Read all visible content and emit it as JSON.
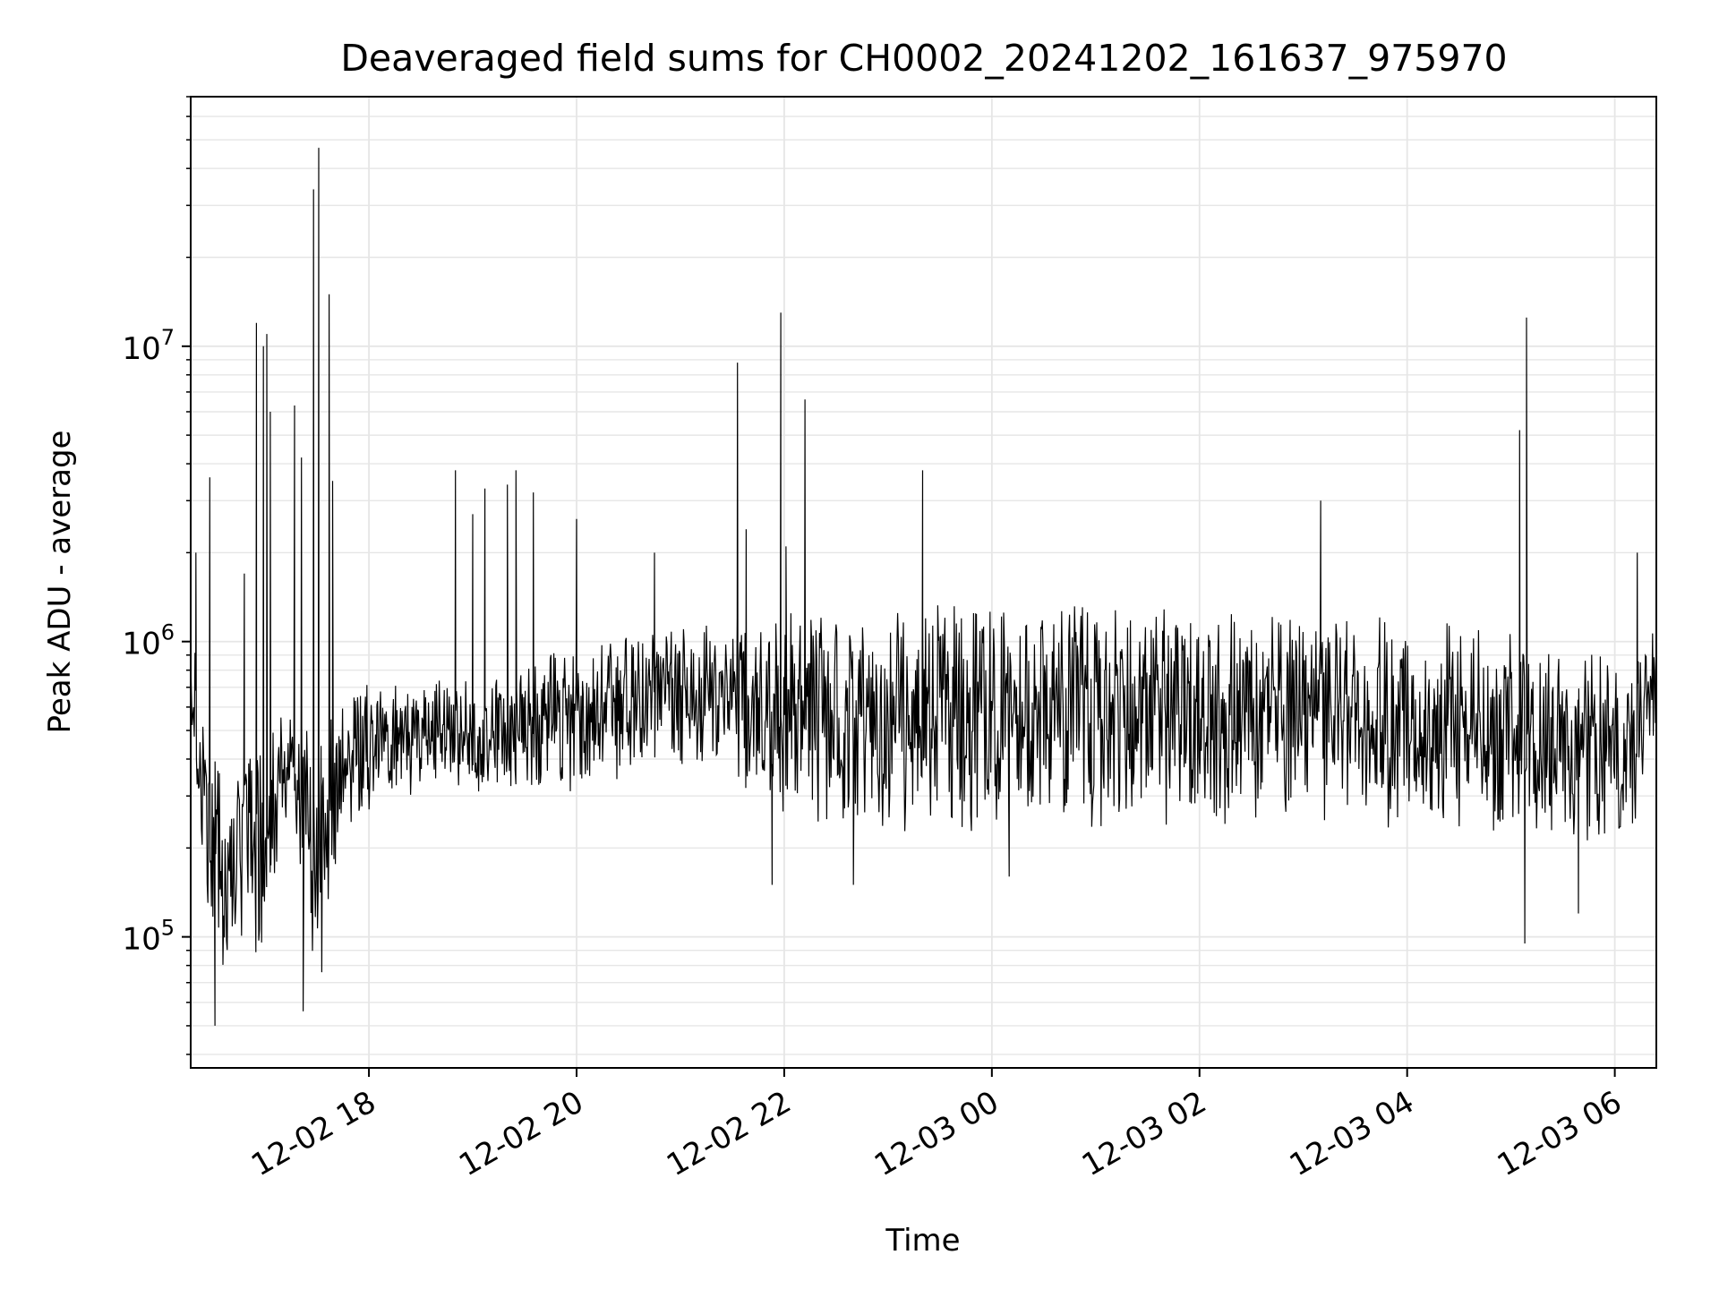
{
  "chart_data": {
    "type": "line",
    "title": "Deaveraged field sums for CH0002_20241202_161637_975970",
    "xlabel": "Time",
    "ylabel": "Peak ADU - average",
    "yscale": "log",
    "ylim": [
      36000,
      70000000
    ],
    "xlim": [
      "2024-12-02 16:17",
      "2024-12-03 06:24"
    ],
    "grid": true,
    "line_color": "#000000",
    "grid_color": "#e6e6e6",
    "x_ticks": [
      {
        "label": "12-02 18",
        "value": "2024-12-02 18:00"
      },
      {
        "label": "12-02 20",
        "value": "2024-12-02 20:00"
      },
      {
        "label": "12-02 22",
        "value": "2024-12-02 22:00"
      },
      {
        "label": "12-03 00",
        "value": "2024-12-03 00:00"
      },
      {
        "label": "12-03 02",
        "value": "2024-12-03 02:00"
      },
      {
        "label": "12-03 04",
        "value": "2024-12-03 04:00"
      },
      {
        "label": "12-03 06",
        "value": "2024-12-03 06:00"
      }
    ],
    "y_ticks": [
      {
        "base": "10",
        "exp": "5",
        "value": 100000
      },
      {
        "base": "10",
        "exp": "6",
        "value": 1000000
      },
      {
        "base": "10",
        "exp": "7",
        "value": 10000000
      }
    ],
    "envelope": {
      "x": [
        "2024-12-02 16:17",
        "2024-12-02 16:25",
        "2024-12-02 16:35",
        "2024-12-02 16:45",
        "2024-12-02 17:00",
        "2024-12-02 17:15",
        "2024-12-02 17:25",
        "2024-12-02 17:35",
        "2024-12-02 17:50",
        "2024-12-02 18:10",
        "2024-12-02 18:40",
        "2024-12-02 19:20",
        "2024-12-02 20:00",
        "2024-12-02 20:40",
        "2024-12-02 21:20",
        "2024-12-02 22:00",
        "2024-12-02 23:00",
        "2024-12-03 00:00",
        "2024-12-03 01:00",
        "2024-12-03 02:00",
        "2024-12-03 03:00",
        "2024-12-03 04:00",
        "2024-12-03 05:00",
        "2024-12-03 05:40",
        "2024-12-03 06:10",
        "2024-12-03 06:24"
      ],
      "low": [
        400000,
        150000,
        70000,
        80000,
        90000,
        300000,
        80000,
        70000,
        250000,
        280000,
        300000,
        300000,
        300000,
        350000,
        350000,
        250000,
        220000,
        220000,
        230000,
        230000,
        250000,
        230000,
        220000,
        200000,
        220000,
        500000
      ],
      "high": [
        1200000,
        600000,
        350000,
        450000,
        550000,
        600000,
        500000,
        600000,
        700000,
        800000,
        800000,
        800000,
        1000000,
        1100000,
        1200000,
        1300000,
        1300000,
        1400000,
        1400000,
        1300000,
        1300000,
        1300000,
        1200000,
        1000000,
        800000,
        1200000
      ]
    },
    "minima": [
      {
        "x": "2024-12-02 16:31",
        "y": 50000
      },
      {
        "x": "2024-12-02 17:22",
        "y": 56000
      },
      {
        "x": "2024-12-02 21:53",
        "y": 150000
      },
      {
        "x": "2024-12-02 22:40",
        "y": 150000
      },
      {
        "x": "2024-12-03 00:10",
        "y": 160000
      },
      {
        "x": "2024-12-03 05:08",
        "y": 95000
      },
      {
        "x": "2024-12-03 05:39",
        "y": 120000
      }
    ],
    "spikes": [
      {
        "x": "2024-12-02 16:20",
        "y": 2000000
      },
      {
        "x": "2024-12-02 16:28",
        "y": 3600000
      },
      {
        "x": "2024-12-02 16:48",
        "y": 1700000
      },
      {
        "x": "2024-12-02 16:55",
        "y": 12000000
      },
      {
        "x": "2024-12-02 16:59",
        "y": 10000000
      },
      {
        "x": "2024-12-02 17:01",
        "y": 11000000
      },
      {
        "x": "2024-12-02 17:03",
        "y": 6000000
      },
      {
        "x": "2024-12-02 17:17",
        "y": 6300000
      },
      {
        "x": "2024-12-02 17:21",
        "y": 4200000
      },
      {
        "x": "2024-12-02 17:28",
        "y": 34000000
      },
      {
        "x": "2024-12-02 17:31",
        "y": 47000000
      },
      {
        "x": "2024-12-02 17:37",
        "y": 15000000
      },
      {
        "x": "2024-12-02 17:39",
        "y": 3500000
      },
      {
        "x": "2024-12-02 18:50",
        "y": 3800000
      },
      {
        "x": "2024-12-02 19:00",
        "y": 2700000
      },
      {
        "x": "2024-12-02 19:07",
        "y": 3300000
      },
      {
        "x": "2024-12-02 19:20",
        "y": 3400000
      },
      {
        "x": "2024-12-02 19:25",
        "y": 3800000
      },
      {
        "x": "2024-12-02 19:35",
        "y": 3200000
      },
      {
        "x": "2024-12-02 20:00",
        "y": 2600000
      },
      {
        "x": "2024-12-02 20:45",
        "y": 2000000
      },
      {
        "x": "2024-12-02 21:33",
        "y": 8800000
      },
      {
        "x": "2024-12-02 21:38",
        "y": 2400000
      },
      {
        "x": "2024-12-02 21:58",
        "y": 13000000
      },
      {
        "x": "2024-12-02 22:01",
        "y": 2100000
      },
      {
        "x": "2024-12-02 22:12",
        "y": 6600000
      },
      {
        "x": "2024-12-02 23:20",
        "y": 3800000
      },
      {
        "x": "2024-12-03 03:10",
        "y": 3000000
      },
      {
        "x": "2024-12-03 05:05",
        "y": 5200000
      },
      {
        "x": "2024-12-03 05:09",
        "y": 12500000
      },
      {
        "x": "2024-12-03 06:13",
        "y": 2000000
      }
    ]
  }
}
